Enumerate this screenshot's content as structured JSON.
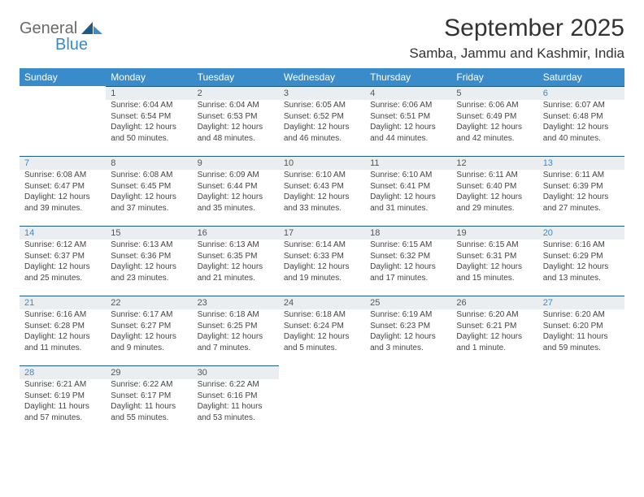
{
  "brand": {
    "general": "General",
    "blue": "Blue"
  },
  "title": "September 2025",
  "location": "Samba, Jammu and Kashmir, India",
  "colors": {
    "header_bg": "#3a8bc9",
    "header_text": "#ffffff",
    "daynum_bg": "#eaeef1",
    "daynum_border": "#1f5a86",
    "body_text": "#444444",
    "weekend_num": "#3a8bc9"
  },
  "weekdays": [
    "Sunday",
    "Monday",
    "Tuesday",
    "Wednesday",
    "Thursday",
    "Friday",
    "Saturday"
  ],
  "weeks": [
    [
      null,
      {
        "n": "1",
        "sr": "Sunrise: 6:04 AM",
        "ss": "Sunset: 6:54 PM",
        "d1": "Daylight: 12 hours",
        "d2": "and 50 minutes."
      },
      {
        "n": "2",
        "sr": "Sunrise: 6:04 AM",
        "ss": "Sunset: 6:53 PM",
        "d1": "Daylight: 12 hours",
        "d2": "and 48 minutes."
      },
      {
        "n": "3",
        "sr": "Sunrise: 6:05 AM",
        "ss": "Sunset: 6:52 PM",
        "d1": "Daylight: 12 hours",
        "d2": "and 46 minutes."
      },
      {
        "n": "4",
        "sr": "Sunrise: 6:06 AM",
        "ss": "Sunset: 6:51 PM",
        "d1": "Daylight: 12 hours",
        "d2": "and 44 minutes."
      },
      {
        "n": "5",
        "sr": "Sunrise: 6:06 AM",
        "ss": "Sunset: 6:49 PM",
        "d1": "Daylight: 12 hours",
        "d2": "and 42 minutes."
      },
      {
        "n": "6",
        "sr": "Sunrise: 6:07 AM",
        "ss": "Sunset: 6:48 PM",
        "d1": "Daylight: 12 hours",
        "d2": "and 40 minutes."
      }
    ],
    [
      {
        "n": "7",
        "sr": "Sunrise: 6:08 AM",
        "ss": "Sunset: 6:47 PM",
        "d1": "Daylight: 12 hours",
        "d2": "and 39 minutes."
      },
      {
        "n": "8",
        "sr": "Sunrise: 6:08 AM",
        "ss": "Sunset: 6:45 PM",
        "d1": "Daylight: 12 hours",
        "d2": "and 37 minutes."
      },
      {
        "n": "9",
        "sr": "Sunrise: 6:09 AM",
        "ss": "Sunset: 6:44 PM",
        "d1": "Daylight: 12 hours",
        "d2": "and 35 minutes."
      },
      {
        "n": "10",
        "sr": "Sunrise: 6:10 AM",
        "ss": "Sunset: 6:43 PM",
        "d1": "Daylight: 12 hours",
        "d2": "and 33 minutes."
      },
      {
        "n": "11",
        "sr": "Sunrise: 6:10 AM",
        "ss": "Sunset: 6:41 PM",
        "d1": "Daylight: 12 hours",
        "d2": "and 31 minutes."
      },
      {
        "n": "12",
        "sr": "Sunrise: 6:11 AM",
        "ss": "Sunset: 6:40 PM",
        "d1": "Daylight: 12 hours",
        "d2": "and 29 minutes."
      },
      {
        "n": "13",
        "sr": "Sunrise: 6:11 AM",
        "ss": "Sunset: 6:39 PM",
        "d1": "Daylight: 12 hours",
        "d2": "and 27 minutes."
      }
    ],
    [
      {
        "n": "14",
        "sr": "Sunrise: 6:12 AM",
        "ss": "Sunset: 6:37 PM",
        "d1": "Daylight: 12 hours",
        "d2": "and 25 minutes."
      },
      {
        "n": "15",
        "sr": "Sunrise: 6:13 AM",
        "ss": "Sunset: 6:36 PM",
        "d1": "Daylight: 12 hours",
        "d2": "and 23 minutes."
      },
      {
        "n": "16",
        "sr": "Sunrise: 6:13 AM",
        "ss": "Sunset: 6:35 PM",
        "d1": "Daylight: 12 hours",
        "d2": "and 21 minutes."
      },
      {
        "n": "17",
        "sr": "Sunrise: 6:14 AM",
        "ss": "Sunset: 6:33 PM",
        "d1": "Daylight: 12 hours",
        "d2": "and 19 minutes."
      },
      {
        "n": "18",
        "sr": "Sunrise: 6:15 AM",
        "ss": "Sunset: 6:32 PM",
        "d1": "Daylight: 12 hours",
        "d2": "and 17 minutes."
      },
      {
        "n": "19",
        "sr": "Sunrise: 6:15 AM",
        "ss": "Sunset: 6:31 PM",
        "d1": "Daylight: 12 hours",
        "d2": "and 15 minutes."
      },
      {
        "n": "20",
        "sr": "Sunrise: 6:16 AM",
        "ss": "Sunset: 6:29 PM",
        "d1": "Daylight: 12 hours",
        "d2": "and 13 minutes."
      }
    ],
    [
      {
        "n": "21",
        "sr": "Sunrise: 6:16 AM",
        "ss": "Sunset: 6:28 PM",
        "d1": "Daylight: 12 hours",
        "d2": "and 11 minutes."
      },
      {
        "n": "22",
        "sr": "Sunrise: 6:17 AM",
        "ss": "Sunset: 6:27 PM",
        "d1": "Daylight: 12 hours",
        "d2": "and 9 minutes."
      },
      {
        "n": "23",
        "sr": "Sunrise: 6:18 AM",
        "ss": "Sunset: 6:25 PM",
        "d1": "Daylight: 12 hours",
        "d2": "and 7 minutes."
      },
      {
        "n": "24",
        "sr": "Sunrise: 6:18 AM",
        "ss": "Sunset: 6:24 PM",
        "d1": "Daylight: 12 hours",
        "d2": "and 5 minutes."
      },
      {
        "n": "25",
        "sr": "Sunrise: 6:19 AM",
        "ss": "Sunset: 6:23 PM",
        "d1": "Daylight: 12 hours",
        "d2": "and 3 minutes."
      },
      {
        "n": "26",
        "sr": "Sunrise: 6:20 AM",
        "ss": "Sunset: 6:21 PM",
        "d1": "Daylight: 12 hours",
        "d2": "and 1 minute."
      },
      {
        "n": "27",
        "sr": "Sunrise: 6:20 AM",
        "ss": "Sunset: 6:20 PM",
        "d1": "Daylight: 11 hours",
        "d2": "and 59 minutes."
      }
    ],
    [
      {
        "n": "28",
        "sr": "Sunrise: 6:21 AM",
        "ss": "Sunset: 6:19 PM",
        "d1": "Daylight: 11 hours",
        "d2": "and 57 minutes."
      },
      {
        "n": "29",
        "sr": "Sunrise: 6:22 AM",
        "ss": "Sunset: 6:17 PM",
        "d1": "Daylight: 11 hours",
        "d2": "and 55 minutes."
      },
      {
        "n": "30",
        "sr": "Sunrise: 6:22 AM",
        "ss": "Sunset: 6:16 PM",
        "d1": "Daylight: 11 hours",
        "d2": "and 53 minutes."
      },
      null,
      null,
      null,
      null
    ]
  ]
}
